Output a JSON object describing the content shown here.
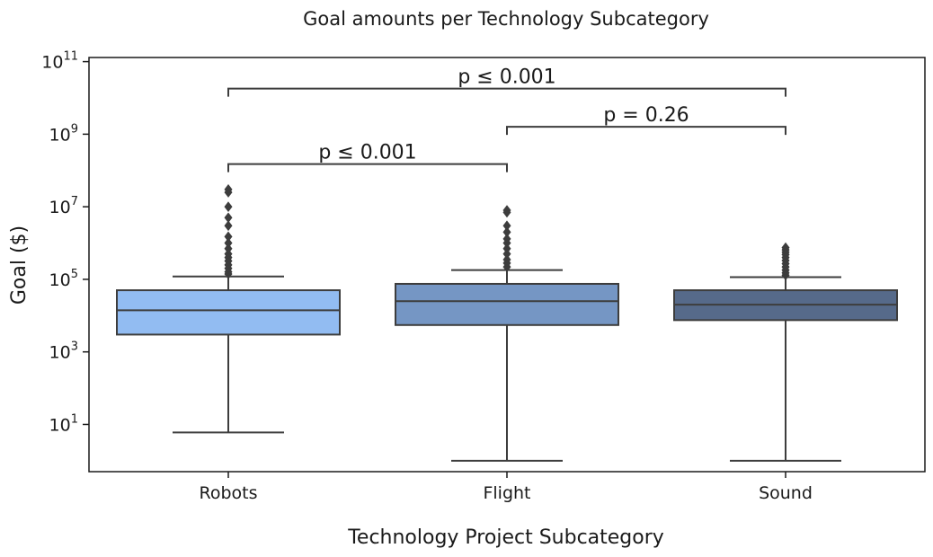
{
  "chart_data": {
    "type": "box",
    "title": "Goal amounts per Technology Subcategory",
    "xlabel": "Technology Project Subcategory",
    "ylabel": "Goal ($)",
    "yscale": "log",
    "ylim": [
      0.5,
      130000000000
    ],
    "y_ticks": [
      {
        "value": 10,
        "base": "10",
        "exp": "1"
      },
      {
        "value": 1000,
        "base": "10",
        "exp": "3"
      },
      {
        "value": 100000,
        "base": "10",
        "exp": "5"
      },
      {
        "value": 10000000,
        "base": "10",
        "exp": "7"
      },
      {
        "value": 1000000000,
        "base": "10",
        "exp": "9"
      },
      {
        "value": 100000000000,
        "base": "10",
        "exp": "11"
      }
    ],
    "categories": [
      "Robots",
      "Flight",
      "Sound"
    ],
    "colors": [
      "#92bcf2",
      "#7596c4",
      "#566a8a"
    ],
    "boxes": [
      {
        "category": "Robots",
        "whisker_low": 6,
        "q1": 3000,
        "median": 14000,
        "q3": 50000,
        "whisker_high": 120000,
        "outliers": [
          140000,
          160000,
          200000,
          250000,
          320000,
          400000,
          500000,
          700000,
          1000000,
          1500000,
          3000000,
          5000000,
          10000000,
          25000000,
          30000000
        ]
      },
      {
        "category": "Flight",
        "whisker_low": 1,
        "q1": 5500,
        "median": 25000,
        "q3": 75000,
        "whisker_high": 180000,
        "outliers": [
          220000,
          280000,
          350000,
          500000,
          700000,
          1000000,
          1300000,
          2000000,
          3000000,
          7000000,
          8000000
        ]
      },
      {
        "category": "Sound",
        "whisker_low": 1,
        "q1": 7500,
        "median": 20000,
        "q3": 50000,
        "whisker_high": 115000,
        "outliers": [
          130000,
          150000,
          180000,
          220000,
          270000,
          330000,
          400000,
          480000,
          560000,
          650000,
          750000
        ]
      }
    ],
    "annotations": [
      {
        "from": "Robots",
        "to": "Flight",
        "y": 150000000,
        "text": "p ≤ 0.001"
      },
      {
        "from": "Flight",
        "to": "Sound",
        "y": 1600000000,
        "text": "p = 0.26"
      },
      {
        "from": "Robots",
        "to": "Sound",
        "y": 18000000000,
        "text": "p ≤ 0.001"
      }
    ],
    "grid": false,
    "legend": "none"
  }
}
